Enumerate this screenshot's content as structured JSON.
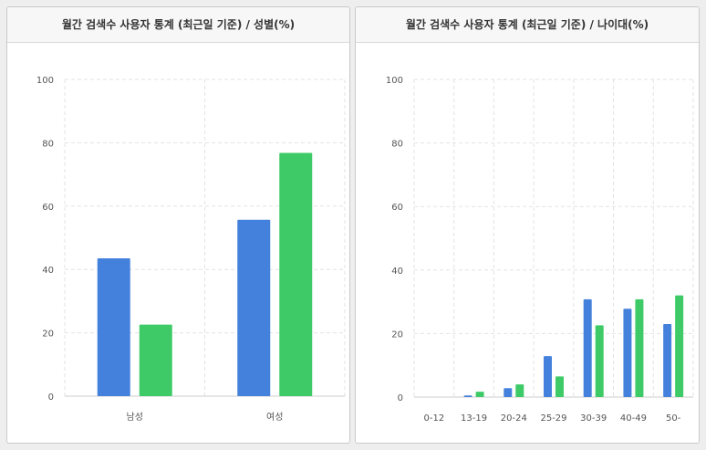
{
  "colors": {
    "series_a": "#4481dc",
    "series_b": "#3ecb67",
    "grid": "#e3e3e3",
    "axis": "#cccccc"
  },
  "chart_data": [
    {
      "type": "bar",
      "title": "월간 검색수 사용자 통계 (최근일 기준) / 성별(%)",
      "categories": [
        "남성",
        "여성"
      ],
      "series": [
        {
          "values": [
            43.5,
            55.7
          ]
        },
        {
          "values": [
            22.6,
            76.8
          ]
        }
      ],
      "ylim": [
        0,
        100
      ],
      "yticks": [
        0,
        20,
        40,
        60,
        80,
        100
      ],
      "grid": true
    },
    {
      "type": "bar",
      "title": "월간 검색수 사용자 통계 (최근일 기준) / 나이대(%)",
      "categories": [
        "0-12",
        "13-19",
        "20-24",
        "25-29",
        "30-39",
        "40-49",
        "50-"
      ],
      "series": [
        {
          "values": [
            0,
            0.5,
            2.8,
            12.9,
            30.8,
            27.8,
            23.0
          ]
        },
        {
          "values": [
            0,
            1.7,
            4.0,
            6.5,
            22.6,
            30.8,
            32.0
          ]
        }
      ],
      "ylim": [
        0,
        100
      ],
      "yticks": [
        0,
        20,
        40,
        60,
        80,
        100
      ],
      "grid": true
    }
  ]
}
